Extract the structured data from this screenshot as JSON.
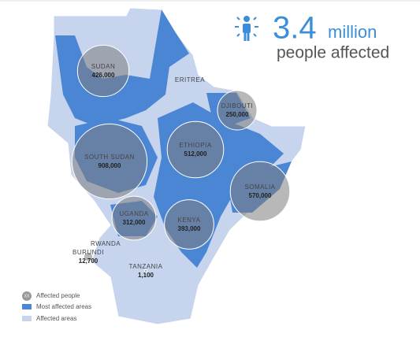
{
  "headline": {
    "number": 3.4,
    "unit": "million",
    "caption": "people affected"
  },
  "countries": [
    {
      "name": "SUDAN",
      "value": 426000,
      "value_label": "426,000"
    },
    {
      "name": "SOUTH SUDAN",
      "value": 908000,
      "value_label": "908,000"
    },
    {
      "name": "ETHIOPIA",
      "value": 512000,
      "value_label": "512,000"
    },
    {
      "name": "DJIBOUTI",
      "value": 250000,
      "value_label": "250,000"
    },
    {
      "name": "SOMALIA",
      "value": 570000,
      "value_label": "570,000"
    },
    {
      "name": "UGANDA",
      "value": 312000,
      "value_label": "312,000"
    },
    {
      "name": "KENYA",
      "value": 393000,
      "value_label": "393,000"
    },
    {
      "name": "BURUNDI",
      "value": 12700,
      "value_label": "12,700"
    },
    {
      "name": "TANZANIA",
      "value": 1100,
      "value_label": "1,100"
    }
  ],
  "other_labels": [
    "ERITREA",
    "RWANDA"
  ],
  "legend": {
    "bubble_marker": "XX",
    "bubble": "Affected people",
    "most": "Most affected areas",
    "affected": "Affected areas"
  }
}
